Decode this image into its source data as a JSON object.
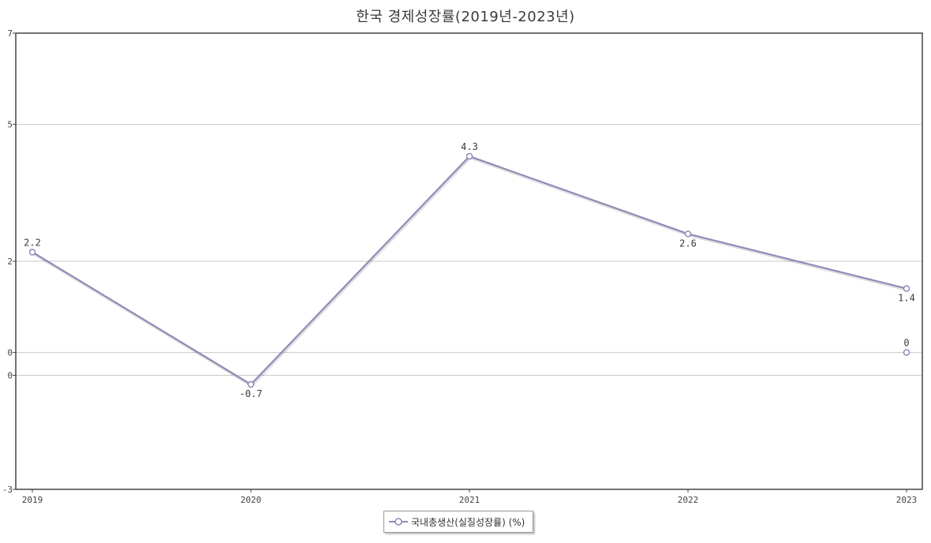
{
  "chart_data": {
    "type": "line",
    "title": "한국 경제성장률(2019년-2023년)",
    "categories": [
      "2019",
      "2020",
      "2021",
      "2022",
      "2023"
    ],
    "series": [
      {
        "name": "국내총생산(실질성장률) (%)",
        "values": [
          2.2,
          -0.7,
          4.3,
          2.6,
          1.4
        ],
        "color": "#8e8cb8",
        "data_labels": [
          "2.2",
          "-0.7",
          "4.3",
          "2.6",
          "1.4"
        ]
      }
    ],
    "extra_points": [
      {
        "category": "2023",
        "value": 0,
        "label": "0"
      }
    ],
    "y_ticks": [
      {
        "value": 7,
        "label": "7"
      },
      {
        "value": 5,
        "label": "5"
      },
      {
        "value": 2,
        "label": "2"
      },
      {
        "value": 0,
        "label": "0"
      },
      {
        "value": -0.5,
        "label": "0"
      },
      {
        "value": -3,
        "label": "-3"
      }
    ],
    "ylim": [
      -3,
      7
    ],
    "grid": true,
    "legend_position": "bottom-center",
    "axis_color": "#444444",
    "grid_color": "#c8c8c8"
  }
}
